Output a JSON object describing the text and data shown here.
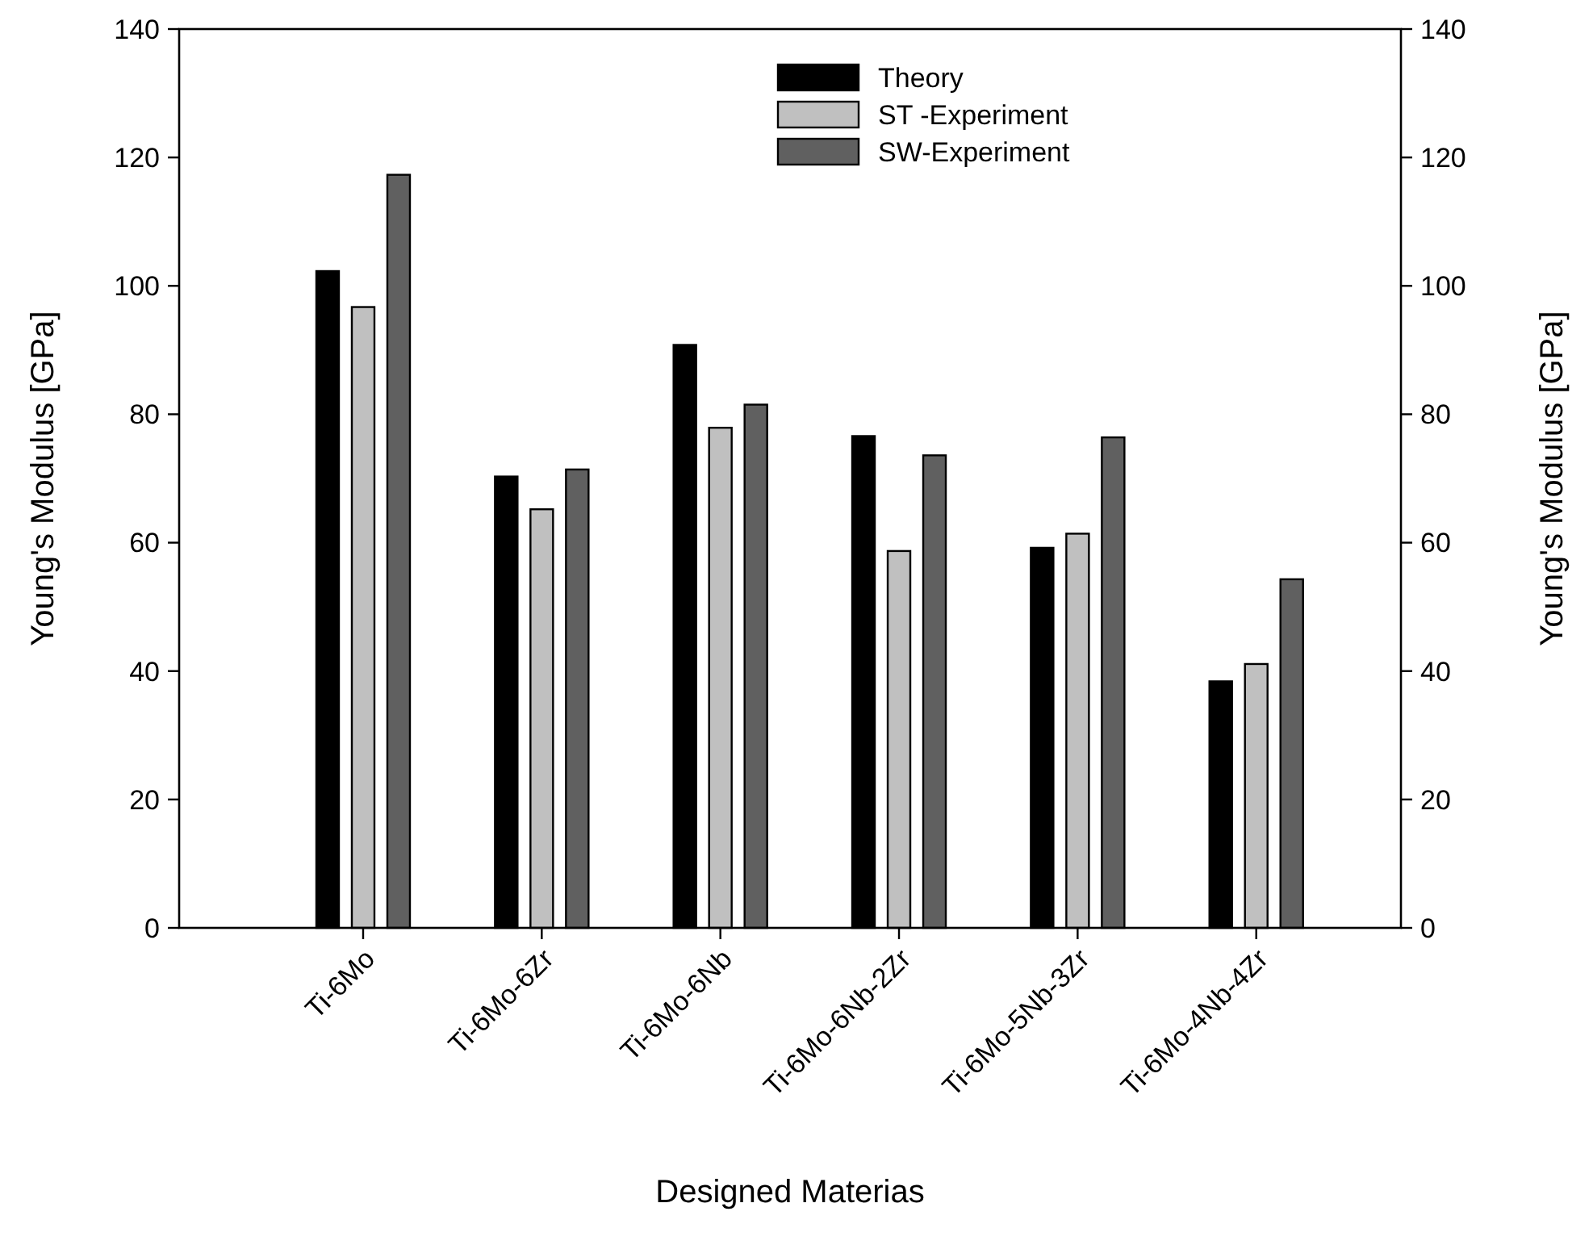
{
  "chart_data": {
    "type": "bar",
    "xlabel": "Designed Materias",
    "ylabel": "Young's Modulus [GPa]",
    "y2label": "Young's Modulus [GPa]",
    "categories": [
      "Ti-6Mo",
      "Ti-6Mo-6Zr",
      "Ti-6Mo-6Nb",
      "Ti-6Mo-6Nb-2Zr",
      "Ti-6Mo-5Nb-3Zr",
      "Ti-6Mo-4Nb-4Zr"
    ],
    "series": [
      {
        "name": "Theory",
        "color": "#000000",
        "values": [
          102.3,
          70.3,
          90.8,
          76.6,
          59.2,
          38.4
        ]
      },
      {
        "name": "ST -Experiment",
        "color": "#c0c0c0",
        "values": [
          96.7,
          65.2,
          77.9,
          58.7,
          61.4,
          41.1
        ]
      },
      {
        "name": "SW-Experiment",
        "color": "#606060",
        "values": [
          117.3,
          71.4,
          81.5,
          73.6,
          76.4,
          54.3
        ]
      }
    ],
    "ylim": [
      0,
      140
    ],
    "yticks": [
      0,
      20,
      40,
      60,
      80,
      100,
      120,
      140
    ],
    "y2lim": [
      0,
      140
    ],
    "y2ticks": [
      0,
      20,
      40,
      60,
      80,
      100,
      120,
      140
    ],
    "legend": "top",
    "grid": false
  }
}
